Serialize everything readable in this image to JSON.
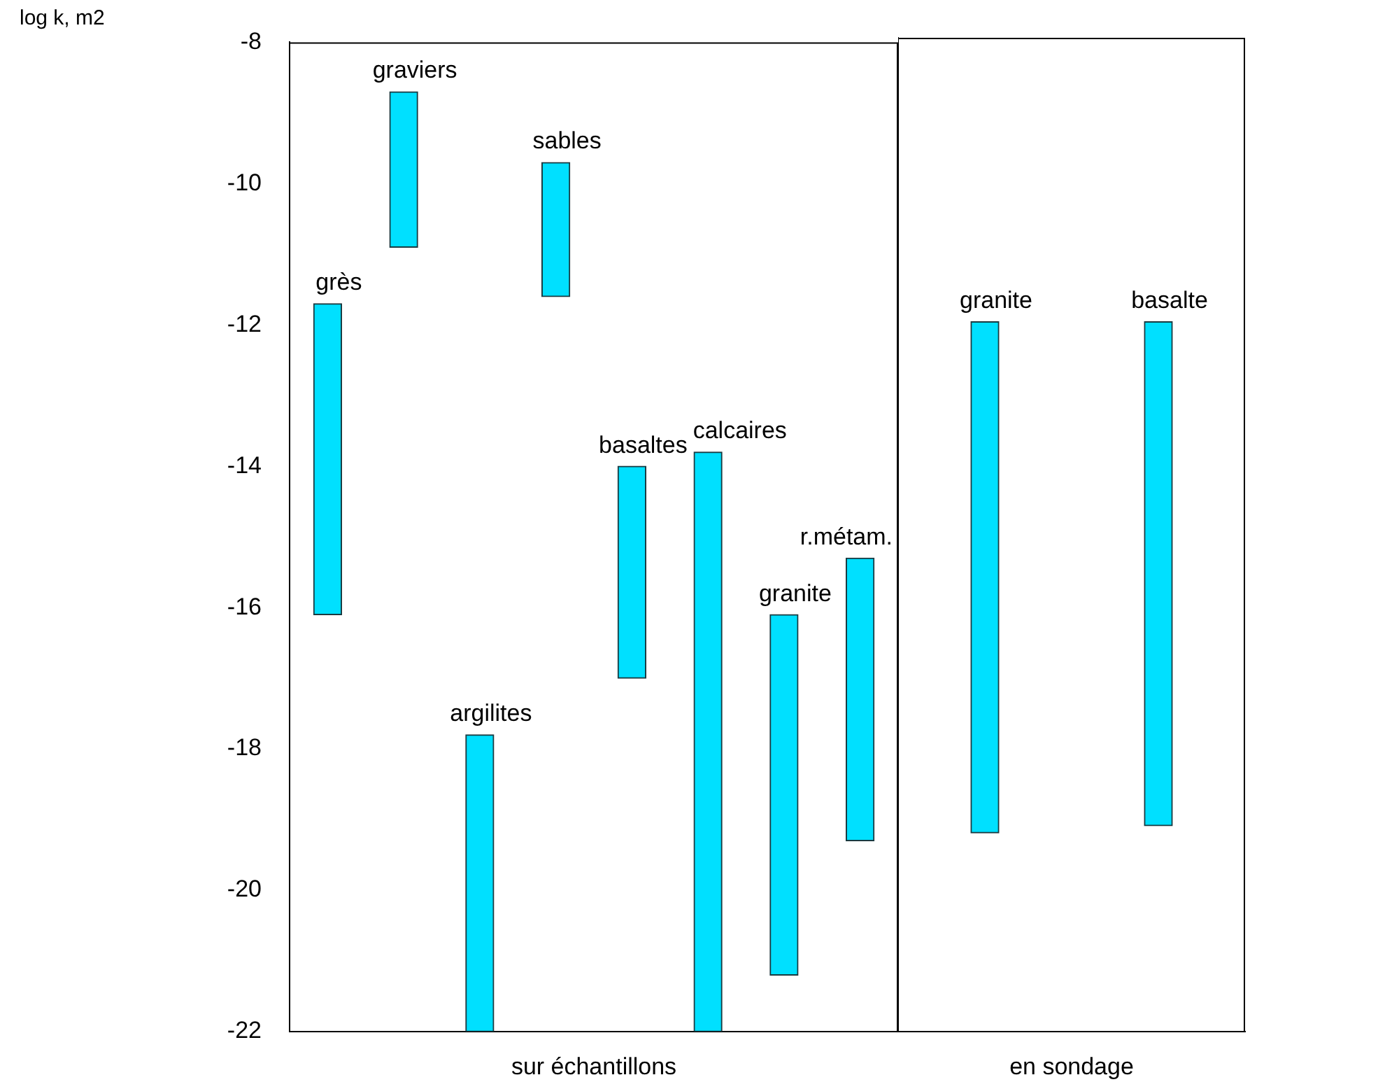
{
  "chart_data": [
    {
      "type": "bar",
      "ylabel": "log k, m2",
      "xlabel": "sur échantillons",
      "categories": [
        "grès",
        "graviers",
        "argilites",
        "sables",
        "basaltes",
        "calcaires",
        "granite",
        "r.métam."
      ],
      "base": [
        -16.1,
        -10.9,
        -22,
        -11.6,
        -17,
        -22,
        -21.2,
        -19.3
      ],
      "values": [
        4.4,
        2.2,
        4.2,
        1.9,
        3,
        8.2,
        5.1,
        4
      ],
      "color": "#00e0ff",
      "ylim": [
        -22,
        -8
      ],
      "yticks": [
        -22,
        -20,
        -18,
        -16,
        -14,
        -12,
        -10,
        -8
      ],
      "grid": false,
      "legend": false,
      "tick_labels": "y"
    },
    {
      "type": "bar",
      "xlabel": "en sondage",
      "categories": [
        "granite",
        "basalte"
      ],
      "base": [
        -19.2,
        -19.1
      ],
      "values": [
        7.2,
        7.1
      ],
      "color": "#00e0ff",
      "ylim": [
        -22,
        -8
      ],
      "yticks": [
        -22,
        -20,
        -18,
        -16,
        -14,
        -12,
        -10,
        -8
      ],
      "grid": false,
      "legend": false,
      "tick_labels": false
    }
  ]
}
